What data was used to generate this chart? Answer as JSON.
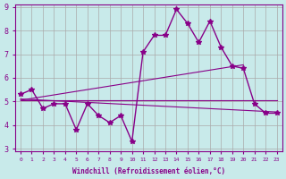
{
  "xlabel": "Windchill (Refroidissement éolien,°C)",
  "ylabel": "",
  "background_color": "#c8eaea",
  "line_color": "#880088",
  "grid_color": "#aaaaaa",
  "xlim": [
    -0.5,
    23.5
  ],
  "ylim": [
    3.0,
    9.0
  ],
  "yticks": [
    3,
    4,
    5,
    6,
    7,
    8,
    9
  ],
  "xticks": [
    0,
    1,
    2,
    3,
    4,
    5,
    6,
    7,
    8,
    9,
    10,
    11,
    12,
    13,
    14,
    15,
    16,
    17,
    18,
    19,
    20,
    21,
    22,
    23
  ],
  "main_data_x": [
    0,
    1,
    2,
    3,
    4,
    5,
    6,
    7,
    8,
    9,
    10,
    11,
    12,
    13,
    14,
    15,
    16,
    17,
    18,
    19,
    20,
    21,
    22,
    23
  ],
  "main_data_y": [
    5.3,
    5.5,
    4.7,
    4.9,
    4.9,
    3.8,
    4.9,
    4.4,
    4.1,
    4.4,
    3.3,
    7.1,
    7.8,
    7.8,
    8.9,
    8.3,
    7.5,
    8.4,
    7.3,
    6.5,
    6.4,
    4.9,
    4.5,
    4.5
  ],
  "trend1_x": [
    0,
    23
  ],
  "trend1_y": [
    5.05,
    5.05
  ],
  "trend2_x": [
    0,
    23
  ],
  "trend2_y": [
    5.1,
    4.55
  ],
  "trend3_x": [
    0,
    20
  ],
  "trend3_y": [
    5.05,
    6.55
  ]
}
